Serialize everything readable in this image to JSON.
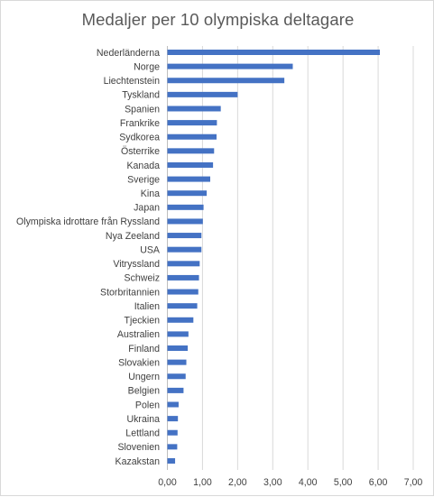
{
  "chart_data": {
    "type": "bar",
    "orientation": "horizontal",
    "title": "Medaljer per 10 olympiska deltagare",
    "xlabel": "",
    "ylabel": "",
    "xlim": [
      0,
      7
    ],
    "x_ticks": [
      "0,00",
      "1,00",
      "2,00",
      "3,00",
      "4,00",
      "5,00",
      "6,00",
      "7,00"
    ],
    "grid": "vertical major gridlines",
    "legend": "none",
    "bar_color": "#4472c4",
    "categories": [
      "Nederländerna",
      "Norge",
      "Liechtenstein",
      "Tyskland",
      "Spanien",
      "Frankrike",
      "Sydkorea",
      "Österrike",
      "Kanada",
      "Sverige",
      "Kina",
      "Japan",
      "Olympiska idrottare från Ryssland",
      "Nya Zeeland",
      "USA",
      "Vitryssland",
      "Schweiz",
      "Storbritannien",
      "Italien",
      "Tjeckien",
      "Australien",
      "Finland",
      "Slovakien",
      "Ungern",
      "Belgien",
      "Polen",
      "Ukraina",
      "Lettland",
      "Slovenien",
      "Kazakstan"
    ],
    "values": [
      6.05,
      3.57,
      3.33,
      2.0,
      1.52,
      1.41,
      1.4,
      1.33,
      1.3,
      1.22,
      1.12,
      1.03,
      1.01,
      0.97,
      0.97,
      0.92,
      0.9,
      0.88,
      0.85,
      0.74,
      0.6,
      0.58,
      0.54,
      0.52,
      0.46,
      0.32,
      0.3,
      0.29,
      0.28,
      0.22
    ]
  }
}
